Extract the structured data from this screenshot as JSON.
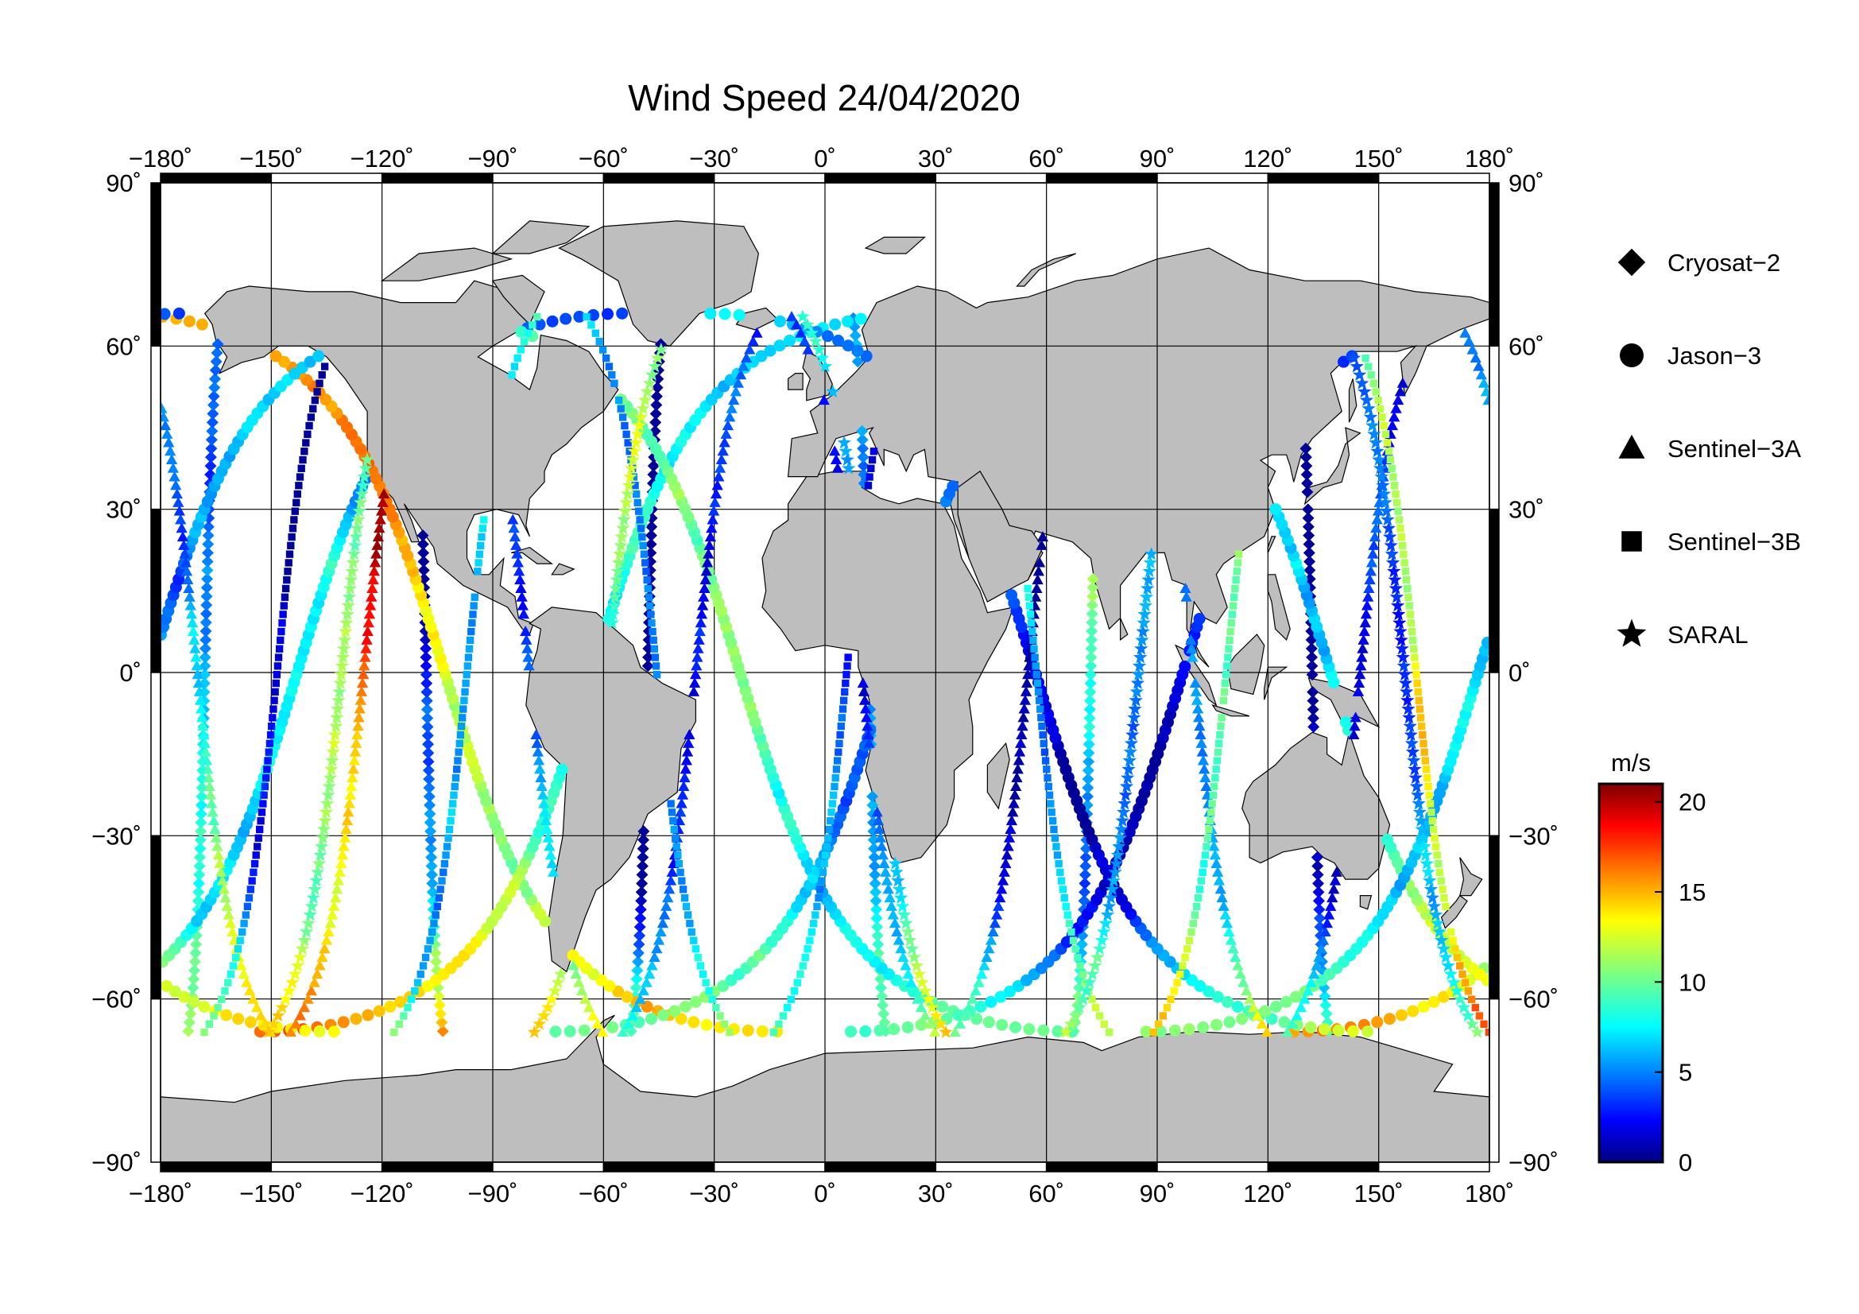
{
  "title": "Wind Speed 24/04/2020",
  "axes": {
    "lon_ticks": [
      "−180˚",
      "−150˚",
      "−120˚",
      "−90˚",
      "−60˚",
      "−30˚",
      "0˚",
      "30˚",
      "60˚",
      "90˚",
      "120˚",
      "150˚",
      "180˚"
    ],
    "lat_ticks": [
      "90˚",
      "60˚",
      "30˚",
      "0˚",
      "−30˚",
      "−60˚",
      "−90˚"
    ],
    "lon_range": [
      -180,
      180
    ],
    "lat_range": [
      -90,
      90
    ],
    "grid": true
  },
  "legend": {
    "placement": "right",
    "items": [
      {
        "label": "Cryosat−2",
        "symbol": "diamond"
      },
      {
        "label": "Jason−3",
        "symbol": "circle"
      },
      {
        "label": "Sentinel−3A",
        "symbol": "triangle"
      },
      {
        "label": "Sentinel−3B",
        "symbol": "square"
      },
      {
        "label": "SARAL",
        "symbol": "star"
      }
    ]
  },
  "colorbar": {
    "unit": "m/s",
    "ticks": [
      "20",
      "15",
      "10",
      "5",
      "0"
    ],
    "range": [
      0,
      21
    ],
    "colormap": "jet"
  },
  "colors": {
    "land": "#bebebe",
    "ocean": "#ffffff",
    "grid": "#000000"
  }
}
